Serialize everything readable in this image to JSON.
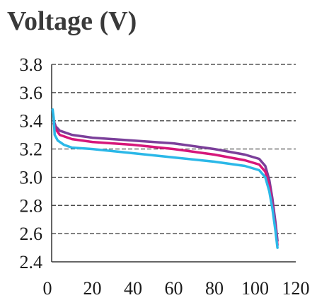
{
  "chart_data": {
    "type": "line",
    "title": "Voltage (V)",
    "xlabel": "",
    "ylabel": "",
    "xlim": [
      0,
      120
    ],
    "ylim": [
      2.4,
      3.8
    ],
    "xticks": [
      0,
      20,
      40,
      60,
      80,
      100,
      120
    ],
    "xtick_labels": [
      "0",
      "20",
      "40",
      "60",
      "80",
      "100",
      "120"
    ],
    "yticks": [
      2.4,
      2.6,
      2.8,
      3.0,
      3.2,
      3.4,
      3.6,
      3.8
    ],
    "ytick_labels": [
      "2.4",
      "2.6",
      "2.8",
      "3.0",
      "3.2",
      "3.4",
      "3.6",
      "3.8"
    ],
    "grid": "horizontal-dashed",
    "legend": "none",
    "series": [
      {
        "color": "#7b3f9a",
        "points": [
          [
            1,
            3.4
          ],
          [
            2,
            3.36
          ],
          [
            4,
            3.33
          ],
          [
            10,
            3.3
          ],
          [
            20,
            3.28
          ],
          [
            40,
            3.26
          ],
          [
            60,
            3.24
          ],
          [
            80,
            3.2
          ],
          [
            95,
            3.16
          ],
          [
            102,
            3.13
          ],
          [
            105,
            3.08
          ],
          [
            107,
            2.98
          ],
          [
            108.5,
            2.85
          ],
          [
            110,
            2.68
          ],
          [
            111,
            2.55
          ]
        ]
      },
      {
        "color": "#d6177a",
        "points": [
          [
            1,
            3.38
          ],
          [
            2,
            3.34
          ],
          [
            4,
            3.3
          ],
          [
            10,
            3.27
          ],
          [
            20,
            3.25
          ],
          [
            40,
            3.23
          ],
          [
            60,
            3.2
          ],
          [
            80,
            3.16
          ],
          [
            95,
            3.12
          ],
          [
            102,
            3.09
          ],
          [
            105,
            3.04
          ],
          [
            107,
            2.94
          ],
          [
            108.5,
            2.8
          ],
          [
            110,
            2.64
          ],
          [
            111,
            2.52
          ]
        ]
      },
      {
        "color": "#2bb8e8",
        "points": [
          [
            0.5,
            3.48
          ],
          [
            1,
            3.42
          ],
          [
            1.5,
            3.3
          ],
          [
            3,
            3.26
          ],
          [
            6,
            3.23
          ],
          [
            10,
            3.21
          ],
          [
            20,
            3.2
          ],
          [
            40,
            3.17
          ],
          [
            60,
            3.14
          ],
          [
            80,
            3.11
          ],
          [
            95,
            3.08
          ],
          [
            102,
            3.05
          ],
          [
            105,
            3.0
          ],
          [
            107,
            2.9
          ],
          [
            108.5,
            2.78
          ],
          [
            110,
            2.62
          ],
          [
            111,
            2.5
          ]
        ]
      }
    ]
  }
}
